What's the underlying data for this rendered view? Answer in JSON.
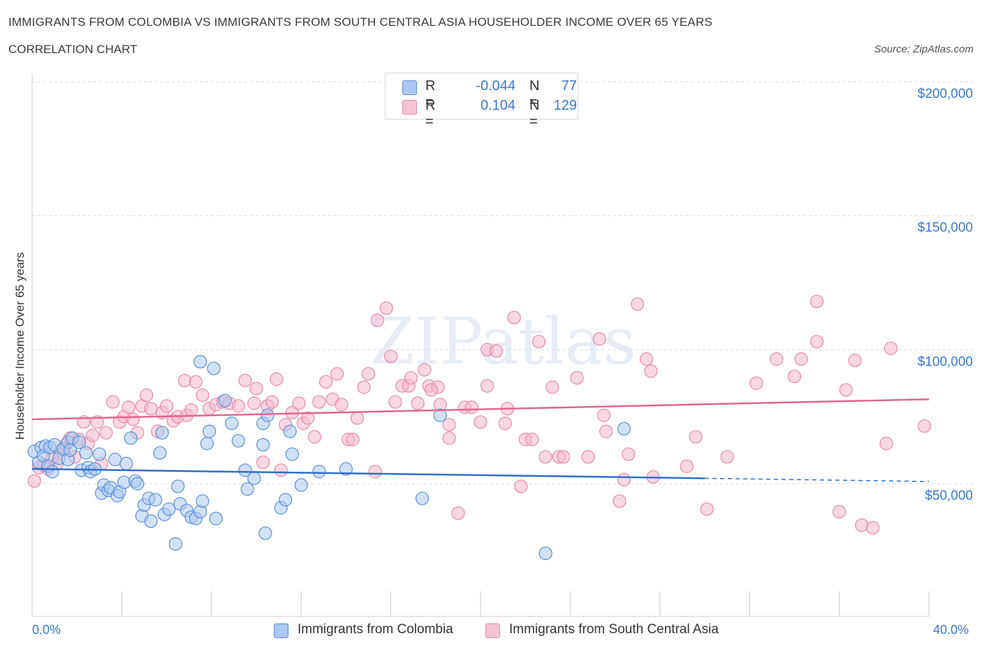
{
  "header": {
    "title": "IMMIGRANTS FROM COLOMBIA VS IMMIGRANTS FROM SOUTH CENTRAL ASIA HOUSEHOLDER INCOME OVER 65 YEARS",
    "subtitle": "CORRELATION CHART",
    "source": "Source: ZipAtlas.com"
  },
  "watermark": "ZIPatlas",
  "legend": {
    "rows": [
      {
        "r_label": "R =",
        "r_value": "-0.044",
        "n_label": "N =",
        "n_value": "77"
      },
      {
        "r_label": "R =",
        "r_value": "0.104",
        "n_label": "N =",
        "n_value": "129"
      }
    ]
  },
  "bottom_legend": {
    "series1": "Immigrants from Colombia",
    "series2": "Immigrants from South Central Asia"
  },
  "axes": {
    "x_min_label": "0.0%",
    "x_max_label": "40.0%"
  },
  "colors": {
    "blue_fill": "#aac8f0",
    "blue_stroke": "#5a8fd6",
    "blue_line": "#2f6fc9",
    "pink_fill": "#f5b8cc",
    "pink_stroke": "#e58aa8",
    "pink_line": "#e0668f",
    "axis_text": "#3b78c9",
    "grid": "#d9d9d9"
  },
  "chart_data": {
    "type": "scatter",
    "title": "IMMIGRANTS FROM COLOMBIA VS IMMIGRANTS FROM SOUTH CENTRAL ASIA HOUSEHOLDER INCOME OVER 65 YEARS",
    "xlabel": "",
    "ylabel": "Householder Income Over 65 years",
    "xlim": [
      0,
      40
    ],
    "ylim": [
      0,
      210000
    ],
    "y_ticks": [
      {
        "value": 50000,
        "label": "$50,000"
      },
      {
        "value": 100000,
        "label": "$100,000"
      },
      {
        "value": 150000,
        "label": "$150,000"
      },
      {
        "value": 200000,
        "label": "$200,000"
      }
    ],
    "grid": true,
    "legend_position": "top-center",
    "series": [
      {
        "name": "Immigrants from Colombia",
        "color": "blue",
        "R": -0.044,
        "N": 77,
        "trend": {
          "x": [
            0,
            30
          ],
          "y": [
            55500,
            52000
          ],
          "dashed_to": [
            40,
            50800
          ]
        },
        "points": [
          [
            0.1,
            62000
          ],
          [
            0.3,
            58000
          ],
          [
            0.4,
            63500
          ],
          [
            0.5,
            60500
          ],
          [
            0.6,
            64000
          ],
          [
            0.7,
            56500
          ],
          [
            0.8,
            63500
          ],
          [
            0.9,
            54500
          ],
          [
            1.0,
            64500
          ],
          [
            1.2,
            59500
          ],
          [
            1.4,
            63000
          ],
          [
            1.6,
            65500
          ],
          [
            1.6,
            59000
          ],
          [
            1.7,
            62500
          ],
          [
            1.8,
            67000
          ],
          [
            2.1,
            65500
          ],
          [
            2.2,
            55000
          ],
          [
            2.4,
            61500
          ],
          [
            2.5,
            56000
          ],
          [
            2.6,
            54500
          ],
          [
            2.8,
            55500
          ],
          [
            3.0,
            61000
          ],
          [
            3.1,
            46500
          ],
          [
            3.2,
            49500
          ],
          [
            3.4,
            47500
          ],
          [
            3.5,
            48500
          ],
          [
            3.7,
            59000
          ],
          [
            3.8,
            45500
          ],
          [
            3.9,
            47000
          ],
          [
            4.1,
            50500
          ],
          [
            4.2,
            57500
          ],
          [
            4.4,
            67000
          ],
          [
            4.6,
            51000
          ],
          [
            4.7,
            50000
          ],
          [
            4.9,
            38000
          ],
          [
            5.0,
            42000
          ],
          [
            5.2,
            44500
          ],
          [
            5.3,
            36000
          ],
          [
            5.5,
            44000
          ],
          [
            5.7,
            61500
          ],
          [
            5.8,
            69000
          ],
          [
            5.9,
            38500
          ],
          [
            6.1,
            40500
          ],
          [
            6.4,
            27500
          ],
          [
            6.5,
            49000
          ],
          [
            6.6,
            42500
          ],
          [
            6.9,
            40000
          ],
          [
            7.1,
            37500
          ],
          [
            7.3,
            37000
          ],
          [
            7.5,
            39500
          ],
          [
            7.6,
            43500
          ],
          [
            7.8,
            65000
          ],
          [
            7.9,
            69500
          ],
          [
            8.2,
            37000
          ],
          [
            8.1,
            93000
          ],
          [
            8.6,
            81000
          ],
          [
            8.9,
            72500
          ],
          [
            9.2,
            66000
          ],
          [
            9.5,
            55000
          ],
          [
            9.6,
            48000
          ],
          [
            9.9,
            52000
          ],
          [
            10.3,
            72500
          ],
          [
            10.3,
            64500
          ],
          [
            10.5,
            75500
          ],
          [
            10.4,
            31500
          ],
          [
            11.1,
            41000
          ],
          [
            11.3,
            44000
          ],
          [
            11.5,
            69500
          ],
          [
            11.6,
            61000
          ],
          [
            12.0,
            49500
          ],
          [
            12.8,
            54500
          ],
          [
            14.0,
            55500
          ],
          [
            17.4,
            44500
          ],
          [
            18.2,
            75500
          ],
          [
            22.9,
            24000
          ],
          [
            26.4,
            70500
          ],
          [
            7.5,
            95500
          ]
        ]
      },
      {
        "name": "Immigrants from South Central Asia",
        "color": "pink",
        "R": 0.104,
        "N": 129,
        "trend": {
          "x": [
            0,
            40
          ],
          "y": [
            74000,
            81500
          ]
        },
        "points": [
          [
            0.1,
            51000
          ],
          [
            0.3,
            56000
          ],
          [
            0.5,
            57000
          ],
          [
            0.7,
            55500
          ],
          [
            0.9,
            59500
          ],
          [
            1.1,
            57500
          ],
          [
            1.3,
            62500
          ],
          [
            1.5,
            64500
          ],
          [
            1.7,
            67000
          ],
          [
            1.9,
            60000
          ],
          [
            2.1,
            66500
          ],
          [
            2.3,
            73000
          ],
          [
            2.5,
            65000
          ],
          [
            2.7,
            68000
          ],
          [
            2.9,
            73000
          ],
          [
            3.1,
            57500
          ],
          [
            3.3,
            69000
          ],
          [
            3.6,
            80500
          ],
          [
            3.9,
            73000
          ],
          [
            4.1,
            75000
          ],
          [
            4.3,
            78500
          ],
          [
            4.5,
            74000
          ],
          [
            4.7,
            69000
          ],
          [
            4.9,
            79000
          ],
          [
            5.1,
            83000
          ],
          [
            5.3,
            78000
          ],
          [
            5.6,
            69500
          ],
          [
            5.8,
            76500
          ],
          [
            6.0,
            79000
          ],
          [
            6.3,
            73500
          ],
          [
            6.5,
            75000
          ],
          [
            6.8,
            88500
          ],
          [
            6.9,
            75500
          ],
          [
            7.1,
            77500
          ],
          [
            7.3,
            88000
          ],
          [
            7.6,
            83000
          ],
          [
            7.9,
            78000
          ],
          [
            8.2,
            79500
          ],
          [
            8.5,
            80500
          ],
          [
            8.8,
            80000
          ],
          [
            9.2,
            79000
          ],
          [
            9.5,
            88500
          ],
          [
            9.9,
            80000
          ],
          [
            10.0,
            85500
          ],
          [
            10.3,
            58000
          ],
          [
            10.5,
            79000
          ],
          [
            10.7,
            80500
          ],
          [
            10.9,
            89000
          ],
          [
            11.1,
            55000
          ],
          [
            11.3,
            72000
          ],
          [
            11.6,
            76500
          ],
          [
            11.9,
            80000
          ],
          [
            12.1,
            72500
          ],
          [
            12.3,
            74500
          ],
          [
            12.6,
            67500
          ],
          [
            12.8,
            80500
          ],
          [
            13.1,
            88000
          ],
          [
            13.4,
            81500
          ],
          [
            13.6,
            91000
          ],
          [
            13.8,
            79500
          ],
          [
            14.1,
            66500
          ],
          [
            14.3,
            66500
          ],
          [
            14.5,
            74500
          ],
          [
            14.8,
            86000
          ],
          [
            15.0,
            91000
          ],
          [
            15.3,
            54500
          ],
          [
            15.4,
            111000
          ],
          [
            15.8,
            115500
          ],
          [
            16.0,
            97500
          ],
          [
            16.2,
            80500
          ],
          [
            16.5,
            86500
          ],
          [
            16.8,
            86500
          ],
          [
            16.9,
            89500
          ],
          [
            17.2,
            80000
          ],
          [
            17.5,
            92500
          ],
          [
            17.7,
            86500
          ],
          [
            18.1,
            86000
          ],
          [
            17.8,
            85000
          ],
          [
            18.2,
            79500
          ],
          [
            18.6,
            67000
          ],
          [
            18.6,
            72000
          ],
          [
            19.0,
            39000
          ],
          [
            19.3,
            78500
          ],
          [
            19.6,
            78500
          ],
          [
            20.0,
            73000
          ],
          [
            20.3,
            86500
          ],
          [
            20.3,
            100000
          ],
          [
            20.7,
            99500
          ],
          [
            21.1,
            72500
          ],
          [
            21.2,
            78000
          ],
          [
            21.5,
            112000
          ],
          [
            21.8,
            49000
          ],
          [
            22.0,
            66500
          ],
          [
            22.3,
            66500
          ],
          [
            22.6,
            103000
          ],
          [
            22.9,
            60000
          ],
          [
            23.2,
            86000
          ],
          [
            23.5,
            60000
          ],
          [
            23.7,
            60000
          ],
          [
            24.3,
            89500
          ],
          [
            24.8,
            60000
          ],
          [
            25.3,
            104000
          ],
          [
            25.5,
            75500
          ],
          [
            25.6,
            69500
          ],
          [
            26.2,
            43500
          ],
          [
            26.4,
            51500
          ],
          [
            26.6,
            61000
          ],
          [
            27.0,
            117000
          ],
          [
            27.4,
            96500
          ],
          [
            27.6,
            92000
          ],
          [
            27.7,
            52500
          ],
          [
            29.2,
            56500
          ],
          [
            29.6,
            67500
          ],
          [
            30.1,
            40500
          ],
          [
            31.0,
            60000
          ],
          [
            32.3,
            87500
          ],
          [
            33.2,
            96500
          ],
          [
            34.0,
            90000
          ],
          [
            34.3,
            96500
          ],
          [
            35.0,
            103000
          ],
          [
            35.0,
            118000
          ],
          [
            36.0,
            39500
          ],
          [
            36.3,
            85000
          ],
          [
            36.7,
            96000
          ],
          [
            37.0,
            34500
          ],
          [
            37.5,
            33500
          ],
          [
            38.1,
            65000
          ],
          [
            38.3,
            100500
          ],
          [
            39.8,
            71500
          ]
        ]
      }
    ]
  }
}
